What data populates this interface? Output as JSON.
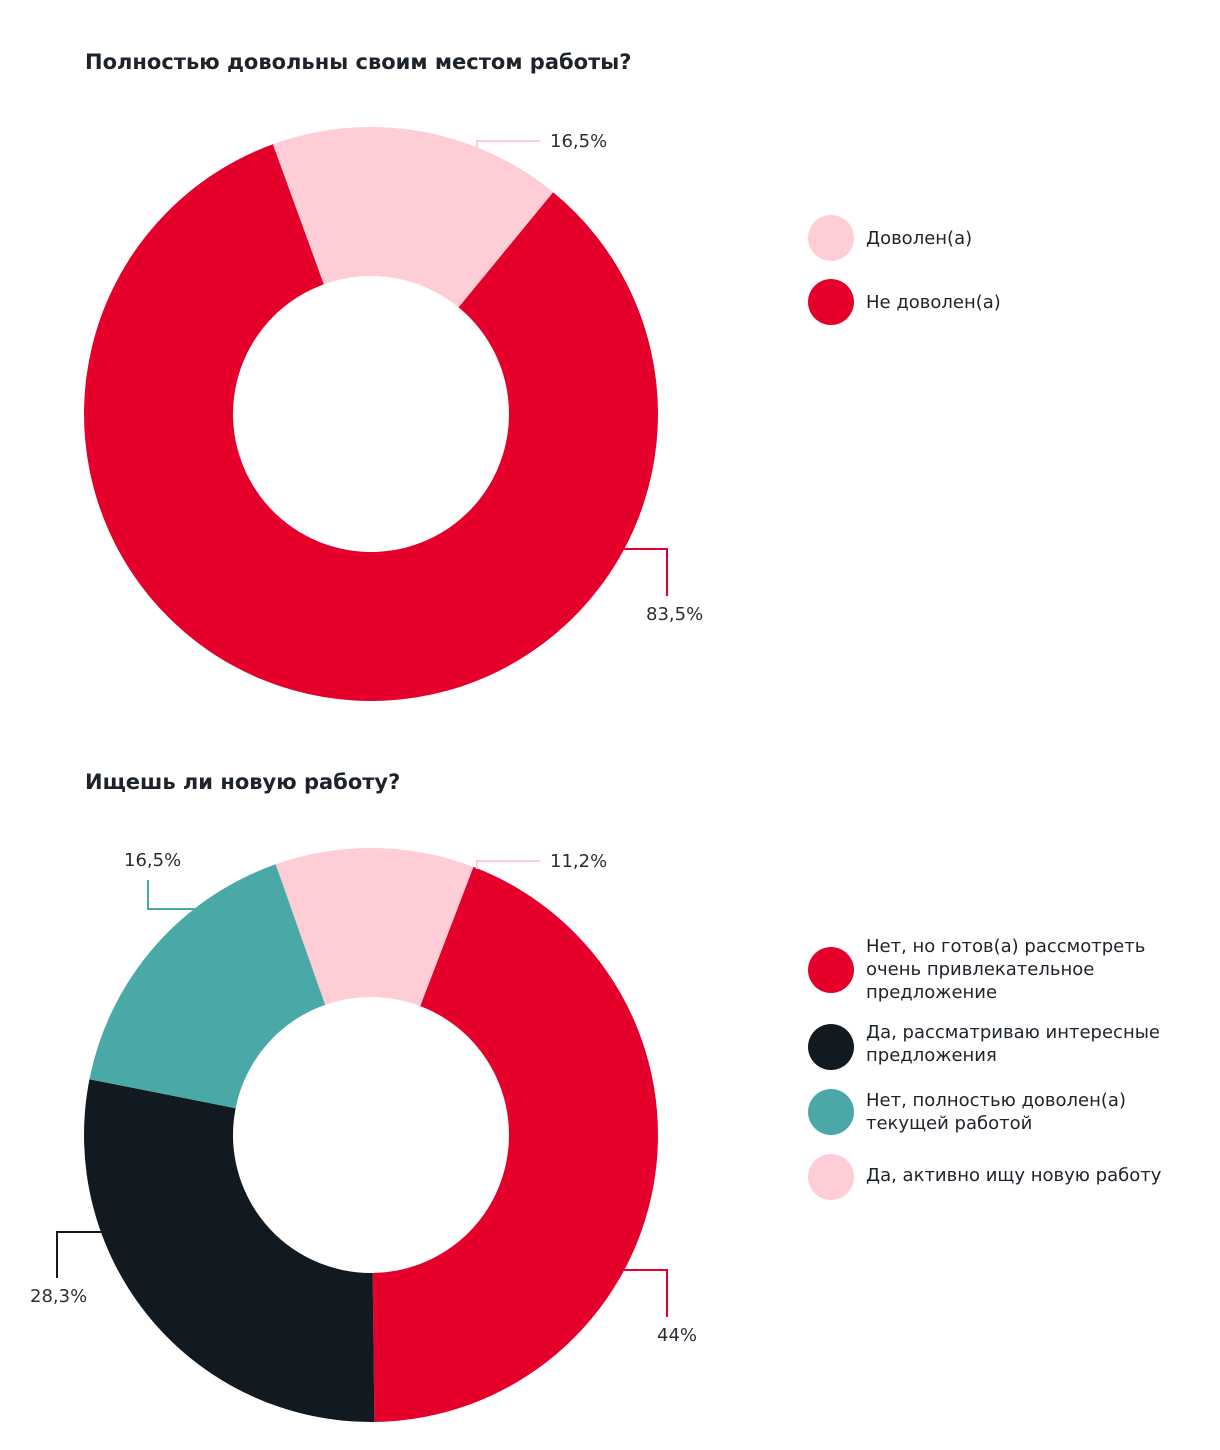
{
  "chart_data": [
    {
      "type": "pie",
      "title": "Полностью довольны своим местом работы?",
      "categories": [
        "Доволен(а)",
        "Не доволен(а)"
      ],
      "values": [
        16.5,
        83.5
      ],
      "labels": [
        "16,5%",
        "83,5%"
      ],
      "colors": [
        "#fecdd6",
        "#e4002b"
      ],
      "legend_placement": "right"
    },
    {
      "type": "pie",
      "title": "Ищешь ли новую работу?",
      "categories": [
        "Нет, но готов(а) рассмотреть очень привлекательное предложение",
        "Да, рассматриваю интересные предложения",
        "Нет, полностью доволен(а) текущей работой",
        "Да, активно ищу новую работу"
      ],
      "values": [
        44,
        28.3,
        16.5,
        11.2
      ],
      "labels": [
        "44%",
        "28,3%",
        "16,5%",
        "11,2%"
      ],
      "colors": [
        "#e4002b",
        "#111a21",
        "#4aa9a6",
        "#fecdd6"
      ],
      "legend_placement": "right"
    }
  ]
}
